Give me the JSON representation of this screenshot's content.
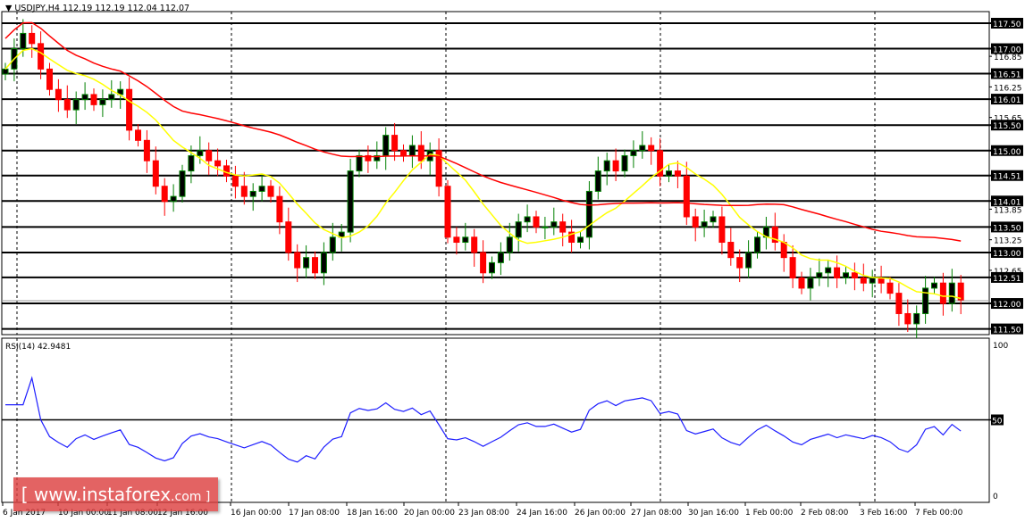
{
  "header": {
    "symbol": "USDJPY,H4",
    "ohlc": "112.19 112.19 112.04 112.07"
  },
  "rsi_label": "RSI(14) 42.9481",
  "watermark": {
    "prefix": "[ www.instaforex",
    "suffix": ".com ]"
  },
  "chart_data": {
    "type": "candlestick",
    "title": "USDJPY,H4",
    "ylim": [
      111.35,
      117.75
    ],
    "levels": [
      "117.50",
      "117.00",
      "116.51",
      "116.01",
      "115.50",
      "115.00",
      "114.51",
      "114.01",
      "113.50",
      "113.00",
      "112.51",
      "112.00",
      "111.50"
    ],
    "minor_ticks": [
      "116.85",
      "116.25",
      "115.65",
      "113.85",
      "113.25",
      "112.65"
    ],
    "x_labels": [
      "6 Jan 2017",
      "10 Jan 00:00",
      "11 Jan 08:00",
      "12 Jan 16:00",
      "16 Jan 00:00",
      "17 Jan 08:00",
      "18 Jan 16:00",
      "20 Jan 00:00",
      "23 Jan 08:00",
      "24 Jan 16:00",
      "26 Jan 00:00",
      "27 Jan 08:00",
      "30 Jan 16:00",
      "1 Feb 00:00",
      "2 Feb 08:00",
      "3 Feb 16:00",
      "7 Feb 00:00"
    ],
    "closes": [
      116.6,
      117.0,
      117.3,
      117.1,
      116.6,
      116.2,
      116.0,
      115.8,
      116.0,
      116.1,
      115.9,
      116.0,
      116.1,
      116.2,
      115.4,
      115.2,
      114.8,
      114.3,
      114.0,
      114.1,
      114.6,
      114.9,
      115.0,
      114.8,
      114.7,
      114.5,
      114.3,
      114.1,
      114.2,
      114.3,
      114.1,
      113.6,
      113.0,
      112.7,
      112.9,
      112.6,
      113.0,
      113.3,
      113.4,
      114.6,
      114.9,
      114.8,
      114.9,
      115.3,
      115.0,
      114.9,
      115.1,
      114.8,
      115.0,
      114.3,
      113.3,
      113.2,
      113.3,
      113.0,
      112.6,
      112.8,
      113.0,
      113.3,
      113.6,
      113.7,
      113.5,
      113.5,
      113.6,
      113.4,
      113.2,
      113.3,
      114.2,
      114.6,
      114.8,
      114.6,
      114.9,
      115.0,
      115.1,
      115.0,
      114.5,
      114.6,
      114.5,
      113.7,
      113.5,
      113.6,
      113.7,
      113.2,
      112.9,
      112.7,
      113.0,
      113.3,
      113.5,
      113.2,
      112.9,
      112.5,
      112.3,
      112.5,
      112.6,
      112.7,
      112.5,
      112.6,
      112.5,
      112.4,
      112.5,
      112.4,
      112.2,
      111.8,
      111.6,
      111.8,
      112.3,
      112.4,
      112.0,
      112.4,
      112.07
    ],
    "ma_fast_period": 10,
    "ma_slow_period": 50,
    "rsi_period": 14,
    "rsi_ticks": [
      "100",
      "50",
      "0"
    ],
    "rsi_level": 50,
    "colors": {
      "up": "#008000",
      "down": "#ff0000",
      "ma_fast": "#ffff00",
      "ma_slow": "#ff0000",
      "rsi": "#1e1eff"
    }
  }
}
